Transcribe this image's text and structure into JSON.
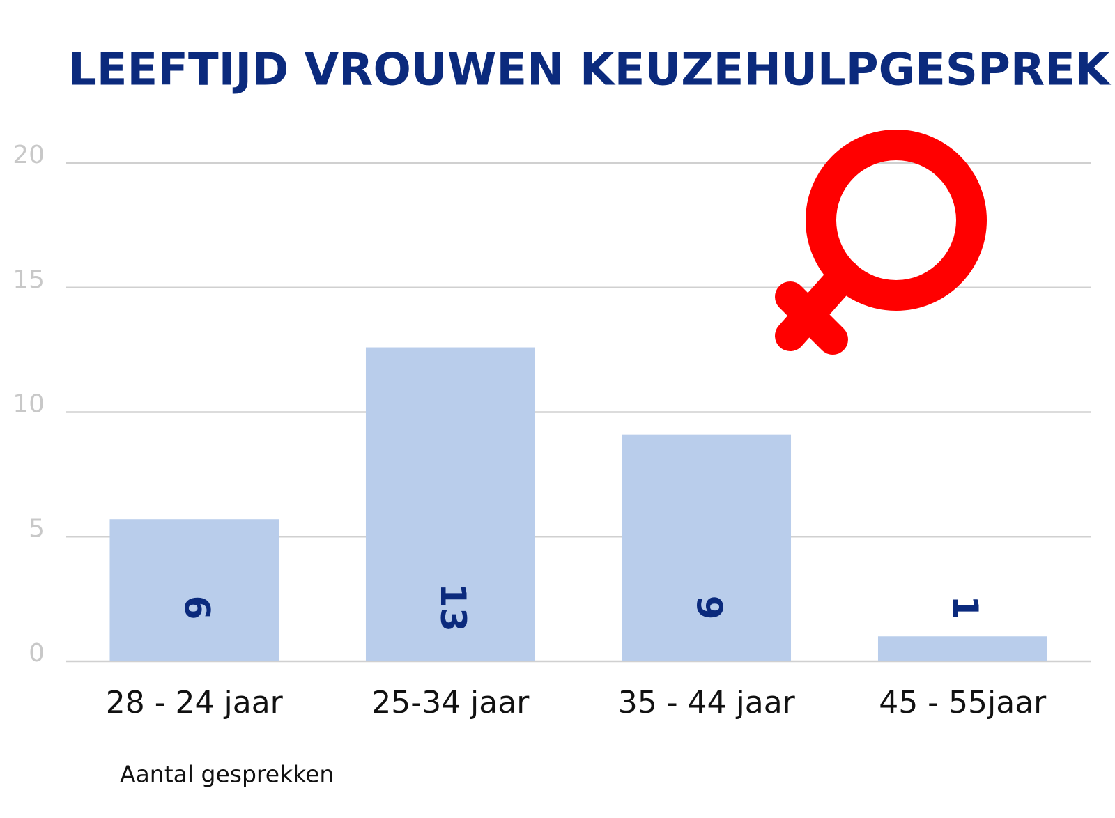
{
  "chart_data": {
    "type": "bar",
    "title": "LEEFTIJD VROUWEN KEUZEHULPGESPREK",
    "categories": [
      "28 - 24 jaar",
      "25-34 jaar",
      "35 - 44 jaar",
      "45 - 55jaar"
    ],
    "series": [
      {
        "name": "Aantal gesprekken",
        "color": "#b9cdeb",
        "values": [
          5.7,
          12.6,
          9.1,
          1.0
        ],
        "value_labels": [
          "6",
          "13",
          "9",
          "1"
        ]
      }
    ],
    "ylim": [
      0,
      20
    ],
    "yticks": [
      0,
      5,
      10,
      15,
      20
    ],
    "grid": true
  }
}
